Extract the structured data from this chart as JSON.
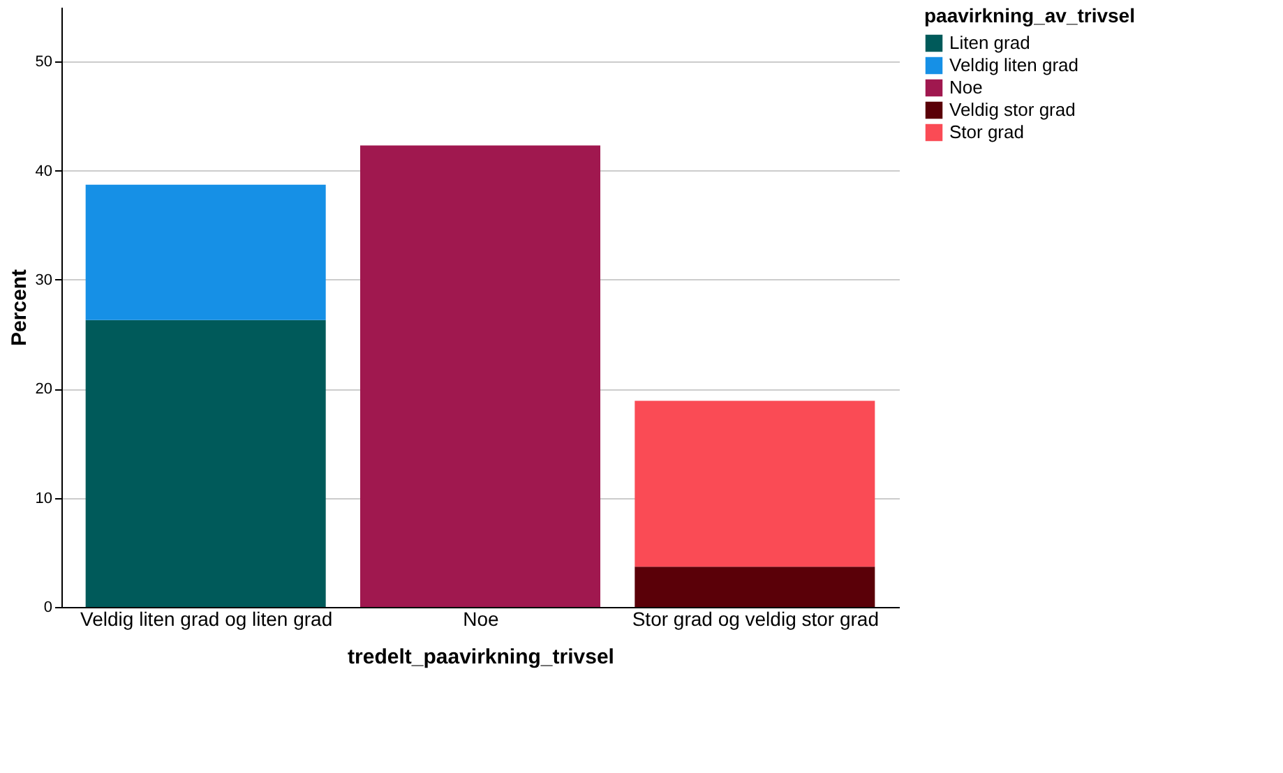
{
  "chart_data": {
    "type": "bar",
    "stacked": true,
    "xlabel": "tredelt_paavirkning_trivsel",
    "ylabel": "Percent",
    "legend_title": "paavirkning_av_trivsel",
    "categories": [
      "Veldig liten grad og liten grad",
      "Noe",
      "Stor grad og veldig stor grad"
    ],
    "series": [
      {
        "name": "Liten grad",
        "color": "#005a5a",
        "values": [
          26.3,
          null,
          null
        ]
      },
      {
        "name": "Veldig liten grad",
        "color": "#1690e6",
        "values": [
          12.4,
          null,
          null
        ]
      },
      {
        "name": "Noe",
        "color": "#a0184f",
        "values": [
          null,
          42.3,
          null
        ]
      },
      {
        "name": "Veldig stor grad",
        "color": "#5a0008",
        "values": [
          null,
          null,
          3.7
        ]
      },
      {
        "name": "Stor grad",
        "color": "#fa4b55",
        "values": [
          null,
          null,
          15.2
        ]
      }
    ],
    "ylim": [
      0,
      55
    ],
    "yticks": [
      0,
      10,
      20,
      30,
      40,
      50
    ],
    "grid": "y",
    "legend": "top right"
  }
}
